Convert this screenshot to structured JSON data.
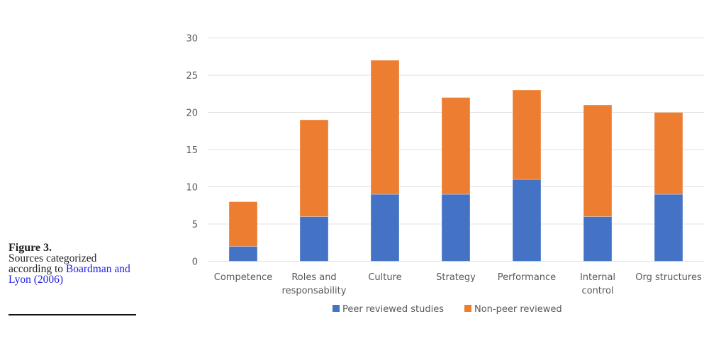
{
  "caption": {
    "figure_label": "Figure 3.",
    "text": "Sources categorized according to",
    "citation": "Boardman and Lyon (2006)"
  },
  "chart_data": {
    "type": "bar",
    "stacked": true,
    "title": "",
    "xlabel": "",
    "ylabel": "",
    "ylim": [
      0,
      30
    ],
    "yticks": [
      0,
      5,
      10,
      15,
      20,
      25,
      30
    ],
    "grid": true,
    "legend_position": "bottom",
    "categories": [
      [
        "Competence"
      ],
      [
        "Roles and",
        "responsability"
      ],
      [
        "Culture"
      ],
      [
        "Strategy"
      ],
      [
        "Performance"
      ],
      [
        "Internal",
        "control"
      ],
      [
        "Org structures"
      ]
    ],
    "series": [
      {
        "name": "Peer reviewed studies",
        "color": "#4472c4",
        "values": [
          2,
          6,
          9,
          9,
          11,
          6,
          9
        ]
      },
      {
        "name": "Non-peer reviewed",
        "color": "#ed7d31",
        "values": [
          6,
          13,
          18,
          13,
          12,
          15,
          11
        ]
      }
    ]
  }
}
